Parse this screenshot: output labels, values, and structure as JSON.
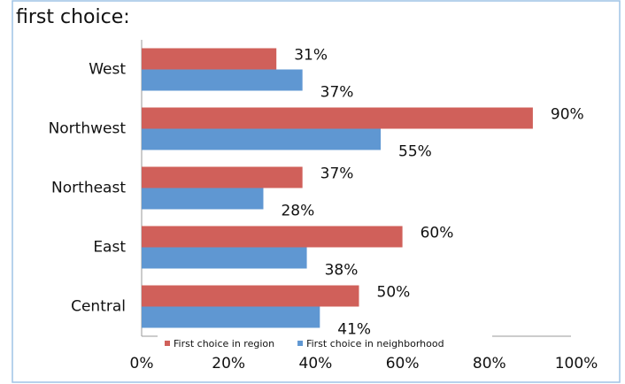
{
  "chart_data": {
    "type": "bar",
    "orientation": "horizontal",
    "title": "first choice:",
    "categories": [
      "West",
      "Northwest",
      "Northeast",
      "East",
      "Central"
    ],
    "series": [
      {
        "name": "First choice in region",
        "color": "#d0605a",
        "values": [
          31,
          90,
          37,
          60,
          50
        ],
        "value_labels": [
          "31%",
          "90%",
          "37%",
          "60%",
          "50%"
        ]
      },
      {
        "name": "First choice in neighborhood",
        "color": "#5f97d2",
        "values": [
          37,
          55,
          28,
          38,
          41
        ],
        "value_labels": [
          "37%",
          "55%",
          "28%",
          "38%",
          "41%"
        ]
      }
    ],
    "xlim": [
      0,
      100
    ],
    "xticks": [
      {
        "value": 0,
        "label": "0%"
      },
      {
        "value": 20,
        "label": "20%"
      },
      {
        "value": 40,
        "label": "40%"
      },
      {
        "value": 60,
        "label": "60%"
      },
      {
        "value": 80,
        "label": "80%"
      },
      {
        "value": 100,
        "label": "100%"
      }
    ],
    "grid": false,
    "legend": "bottom"
  }
}
